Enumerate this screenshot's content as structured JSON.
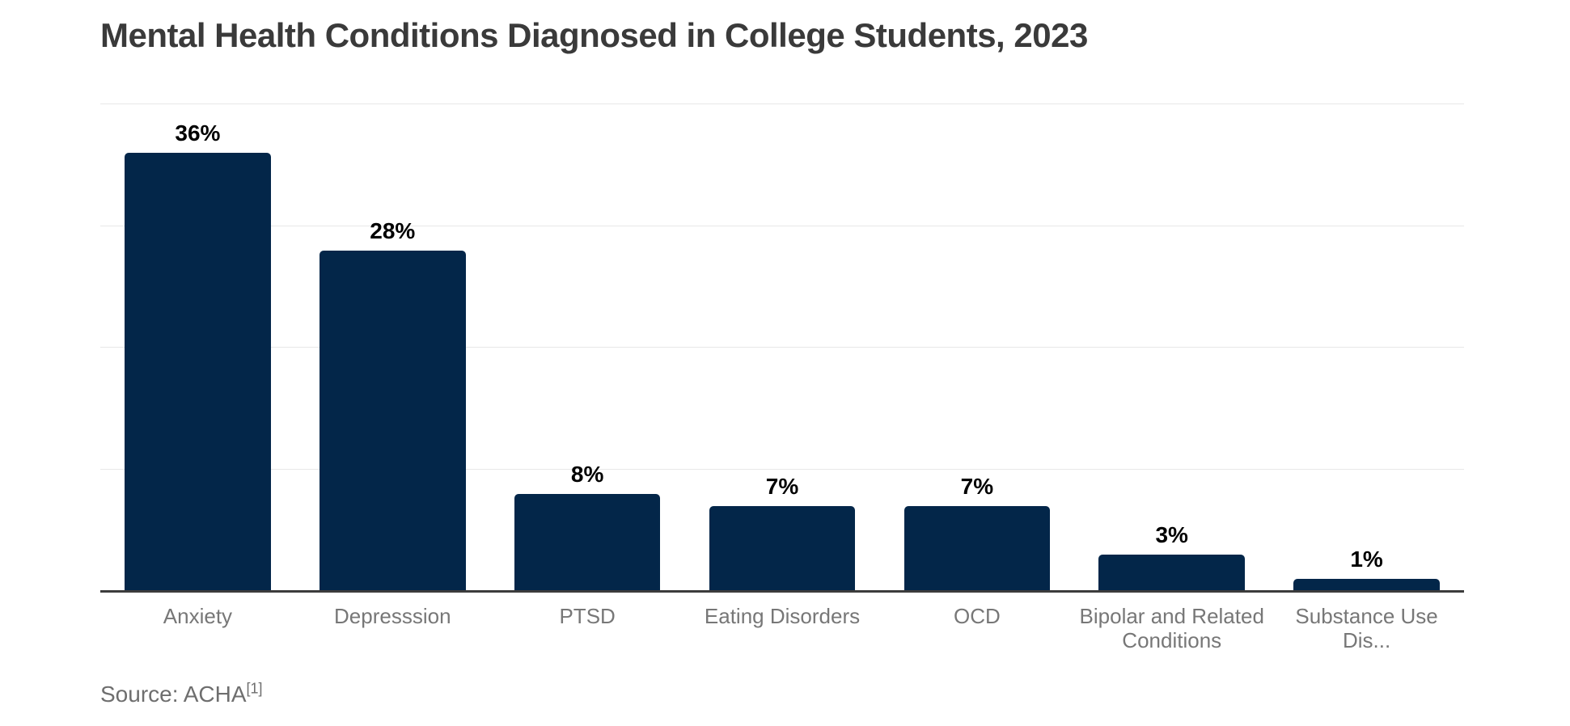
{
  "chart_data": {
    "type": "bar",
    "title": "Mental Health Conditions Diagnosed in College Students, 2023",
    "categories": [
      "Anxiety",
      "Depresssion",
      "PTSD",
      "Eating Disorders",
      "OCD",
      "Bipolar and Related Conditions",
      "Substance Use Dis..."
    ],
    "values": [
      36,
      28,
      8,
      7,
      7,
      3,
      1
    ],
    "value_labels": [
      "36%",
      "28%",
      "8%",
      "7%",
      "7%",
      "3%",
      "1%"
    ],
    "xlabel": "",
    "ylabel": "",
    "ylim": [
      0,
      40
    ],
    "gridline_values": [
      10,
      20,
      30,
      40
    ],
    "grid": "horizontal-only",
    "legend_position": "none",
    "y_tick_labels_visible": false,
    "bar_color": "#032649",
    "gridline_color": "#e8e8e8",
    "axis_line_color": "#3c3c3c",
    "title_color": "#3a3a3a",
    "category_label_color": "#777777",
    "value_label_color": "#000000"
  },
  "source": {
    "prefix": "Source: ACHA",
    "superscript": "[1]"
  }
}
